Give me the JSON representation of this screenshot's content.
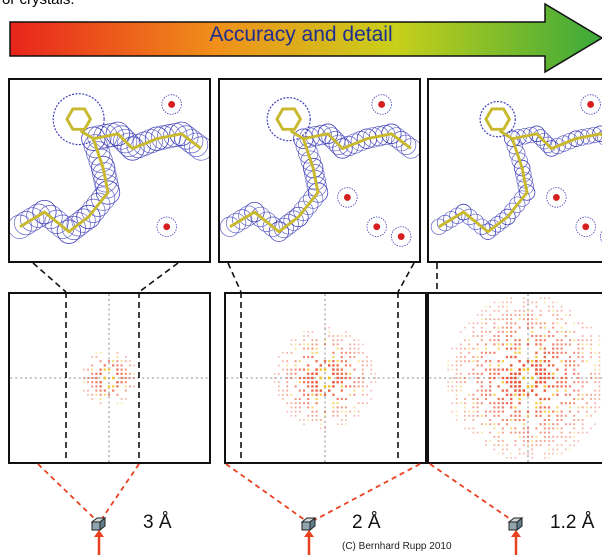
{
  "top_text_fragment": "or crystals.",
  "arrow": {
    "label": "Accuracy and detail",
    "gradient": [
      "#e8241c",
      "#f0901a",
      "#c8d01a",
      "#3aa93a"
    ],
    "outline": "#111111"
  },
  "panels": [
    {
      "resolution": "3 Å"
    },
    {
      "resolution": "2 Å"
    },
    {
      "resolution": "1.2 Å"
    }
  ],
  "copyright": "(C) Bernhard Rupp 2010",
  "colors": {
    "mesh": "#3a3ab8",
    "stick": "#c8b92e",
    "water": "#d62020",
    "spot_red": "#e8411f",
    "spot_yellow": "#f2c21a",
    "guide": "#e8411f"
  },
  "icons": {
    "crystal": "crystal-cube-icon"
  }
}
